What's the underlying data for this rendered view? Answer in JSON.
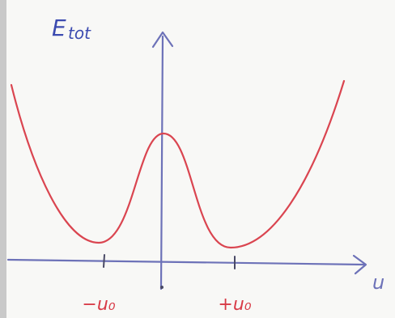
{
  "y_axis": {
    "label": "E",
    "subscript": "tot"
  },
  "x_axis": {
    "label": "u",
    "ticks": [
      "−u₀",
      "+u₀"
    ]
  }
}
